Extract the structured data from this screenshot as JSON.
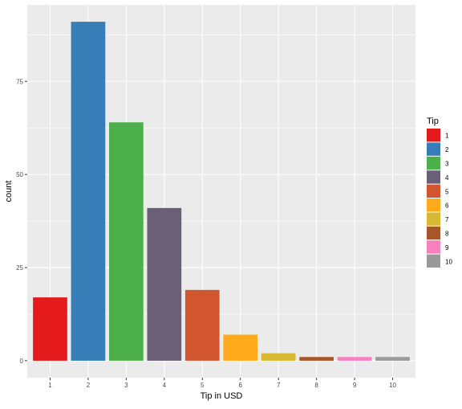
{
  "chart_data": {
    "type": "bar",
    "title": "",
    "xlabel": "Tip in USD",
    "ylabel": "count",
    "categories": [
      "1",
      "2",
      "3",
      "4",
      "5",
      "6",
      "7",
      "8",
      "9",
      "10"
    ],
    "values": [
      17,
      91,
      64,
      41,
      19,
      7,
      2,
      1,
      1,
      1
    ],
    "colors": [
      "#E41A1C",
      "#377EB8",
      "#4DAF4A",
      "#6A5F76",
      "#D1552F",
      "#FFAA1A",
      "#D8B830",
      "#A65628",
      "#F781BF",
      "#999999"
    ],
    "y_ticks": [
      0,
      25,
      50,
      75
    ],
    "ylim": [
      -4.55,
      95.55
    ],
    "grid": true,
    "panel_background": "#EBEBEB",
    "legend": {
      "title": "Tip",
      "position": "right",
      "labels": [
        "1",
        "2",
        "3",
        "4",
        "5",
        "6",
        "7",
        "8",
        "9",
        "10"
      ]
    }
  }
}
